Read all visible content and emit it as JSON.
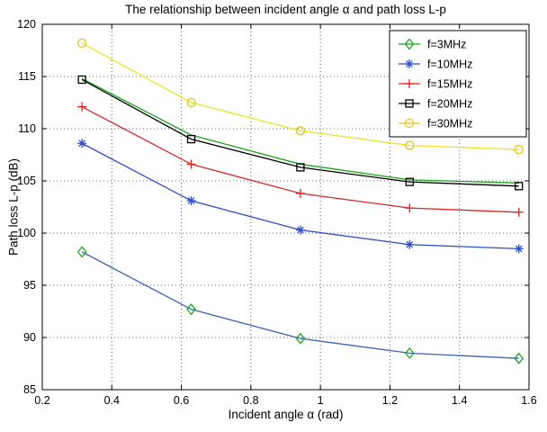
{
  "figure": {
    "title": "The relationship between incident angle α and path loss L-p",
    "xlabel": "Incident angle α (rad)",
    "ylabel": "Path loss L-p (dB)"
  },
  "chart_data": {
    "type": "line",
    "title": "The relationship between incident angle α and path loss L-p",
    "xlabel": "Incident angle α (rad)",
    "ylabel": "Path loss L-p (dB)",
    "xlim": [
      0.2,
      1.6
    ],
    "ylim": [
      85,
      120
    ],
    "x_ticks": [
      0.2,
      0.4,
      0.6,
      0.8,
      1,
      1.2,
      1.4,
      1.6
    ],
    "x_tick_labels": [
      "0.2",
      "0.4",
      "0.6",
      "0.8",
      "1",
      "1.2",
      "1.4",
      "1.6"
    ],
    "y_ticks": [
      85,
      90,
      95,
      100,
      105,
      110,
      115,
      120
    ],
    "y_tick_labels": [
      "85",
      "90",
      "95",
      "100",
      "105",
      "110",
      "115",
      "120"
    ],
    "grid": "dotted",
    "legend_position": "top-right",
    "x": [
      0.3142,
      0.6283,
      0.9425,
      1.2566,
      1.5708
    ],
    "series": [
      {
        "name": "f=3MHz",
        "marker": "diamond",
        "marker_color": "#21a321",
        "line_color": "#3a62b8",
        "values": [
          98.2,
          92.7,
          89.9,
          88.5,
          88.0
        ],
        "in_legend": true
      },
      {
        "name": "f=10MHz",
        "marker": "asterisk",
        "marker_color": "#2f4fc8",
        "line_color": "#2f4fc8",
        "values": [
          108.6,
          103.1,
          100.3,
          98.9,
          98.5
        ],
        "in_legend": true
      },
      {
        "name": "f=15MHz",
        "marker": "plus",
        "marker_color": "#e21f1f",
        "line_color": "#d42a2a",
        "values": [
          112.1,
          106.6,
          103.8,
          102.4,
          102.0
        ],
        "in_legend": true
      },
      {
        "name": "f=20MHz-green-line",
        "marker": "none",
        "marker_color": "#21a321",
        "line_color": "#21a321",
        "values": [
          114.8,
          109.4,
          106.6,
          105.1,
          104.8
        ],
        "in_legend": false
      },
      {
        "name": "f=20MHz",
        "marker": "square",
        "marker_color": "#000000",
        "line_color": "#000000",
        "values": [
          114.7,
          109.0,
          106.3,
          104.9,
          104.5
        ],
        "in_legend": true
      },
      {
        "name": "f=30MHz",
        "marker": "circle",
        "marker_color": "#e3c41c",
        "line_color": "#ebe22a",
        "values": [
          118.2,
          112.5,
          109.8,
          108.4,
          108.0
        ],
        "in_legend": true
      }
    ]
  }
}
